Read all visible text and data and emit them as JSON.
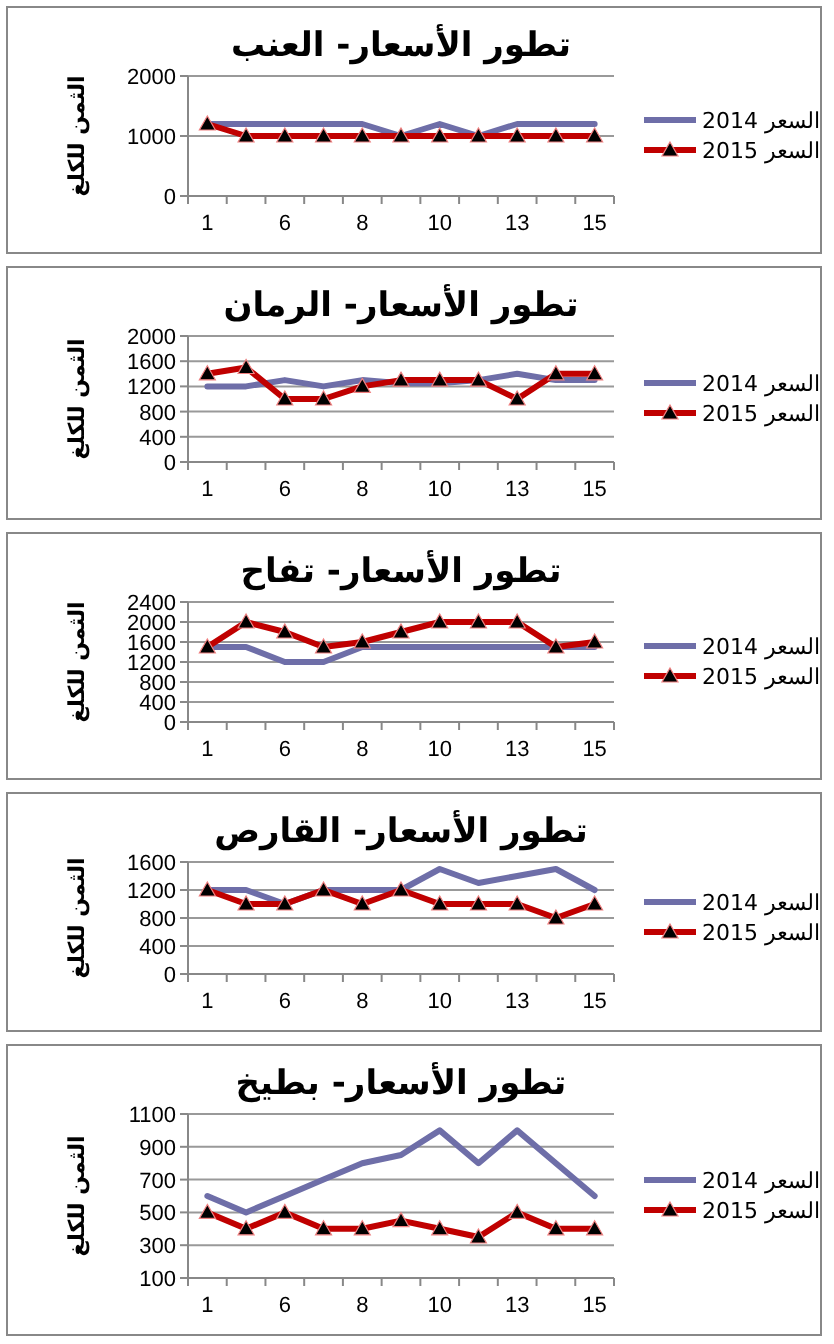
{
  "chart_data": [
    {
      "type": "line",
      "title": "تطور الأسعار- العنب",
      "ylabel": "الثمن للكلغ",
      "categories": [
        "1",
        null,
        "6",
        null,
        "8",
        null,
        "10",
        null,
        "13",
        null,
        "15"
      ],
      "ylim": [
        0,
        2000
      ],
      "yticks": [
        0,
        1000,
        2000
      ],
      "grid": "y",
      "legend": "right",
      "series": [
        {
          "name": "السعر 2014",
          "color": "#6e6ea8",
          "marker": "none",
          "values": [
            1200,
            1200,
            1200,
            1200,
            1200,
            1000,
            1200,
            1000,
            1200,
            1200,
            1200
          ]
        },
        {
          "name": "السعر 2015",
          "color": "#c00000",
          "marker": "triangle",
          "values": [
            1200,
            1000,
            1000,
            1000,
            1000,
            1000,
            1000,
            1000,
            1000,
            1000,
            1000
          ]
        }
      ]
    },
    {
      "type": "line",
      "title": "تطور الأسعار- الرمان",
      "ylabel": "الثمن للكلغ",
      "categories": [
        "1",
        null,
        "6",
        null,
        "8",
        null,
        "10",
        null,
        "13",
        null,
        "15"
      ],
      "ylim": [
        0,
        2000
      ],
      "yticks": [
        0,
        400,
        800,
        1200,
        1600,
        2000
      ],
      "grid": "y",
      "legend": "right",
      "series": [
        {
          "name": "السعر 2014",
          "color": "#6e6ea8",
          "marker": "none",
          "values": [
            1200,
            1200,
            1300,
            1200,
            1300,
            1250,
            1250,
            1300,
            1400,
            1300,
            1300
          ]
        },
        {
          "name": "السعر 2015",
          "color": "#c00000",
          "marker": "triangle",
          "values": [
            1400,
            1500,
            1000,
            1000,
            1200,
            1300,
            1300,
            1300,
            1000,
            1400,
            1400
          ]
        }
      ]
    },
    {
      "type": "line",
      "title": "تطور الأسعار- تفاح",
      "ylabel": "الثمن للكلغ",
      "categories": [
        "1",
        null,
        "6",
        null,
        "8",
        null,
        "10",
        null,
        "13",
        null,
        "15"
      ],
      "ylim": [
        0,
        2400
      ],
      "yticks": [
        0,
        400,
        800,
        1200,
        1600,
        2000,
        2400
      ],
      "grid": "y",
      "legend": "right",
      "series": [
        {
          "name": "السعر 2014",
          "color": "#6e6ea8",
          "marker": "none",
          "values": [
            1500,
            1500,
            1200,
            1200,
            1500,
            1500,
            1500,
            1500,
            1500,
            1500,
            1500
          ]
        },
        {
          "name": "السعر 2015",
          "color": "#c00000",
          "marker": "triangle",
          "values": [
            1500,
            2000,
            1800,
            1500,
            1600,
            1800,
            2000,
            2000,
            2000,
            1500,
            1600
          ]
        }
      ]
    },
    {
      "type": "line",
      "title": "تطور الأسعار- القارص",
      "ylabel": "الثمن للكلغ",
      "categories": [
        "1",
        null,
        "6",
        null,
        "8",
        null,
        "10",
        null,
        "13",
        null,
        "15"
      ],
      "ylim": [
        0,
        1600
      ],
      "yticks": [
        0,
        400,
        800,
        1200,
        1600
      ],
      "grid": "y",
      "legend": "right",
      "series": [
        {
          "name": "السعر 2014",
          "color": "#6e6ea8",
          "marker": "none",
          "values": [
            1200,
            1200,
            1000,
            1200,
            1200,
            1200,
            1500,
            1300,
            1400,
            1500,
            1200
          ]
        },
        {
          "name": "السعر 2015",
          "color": "#c00000",
          "marker": "triangle",
          "values": [
            1200,
            1000,
            1000,
            1200,
            1000,
            1200,
            1000,
            1000,
            1000,
            800,
            1000
          ]
        }
      ]
    },
    {
      "type": "line",
      "title": "تطور الأسعار- بطيخ",
      "ylabel": "الثمن للكلغ",
      "categories": [
        "1",
        null,
        "6",
        null,
        "8",
        null,
        "10",
        null,
        "13",
        null,
        "15"
      ],
      "ylim": [
        100,
        1100
      ],
      "yticks": [
        100,
        300,
        500,
        700,
        900,
        1100
      ],
      "grid": "y",
      "legend": "right",
      "series": [
        {
          "name": "السعر 2014",
          "color": "#6e6ea8",
          "marker": "none",
          "values": [
            600,
            500,
            600,
            700,
            800,
            850,
            1000,
            800,
            1000,
            800,
            600
          ]
        },
        {
          "name": "السعر 2015",
          "color": "#c00000",
          "marker": "triangle",
          "values": [
            500,
            400,
            500,
            400,
            400,
            450,
            400,
            350,
            500,
            400,
            400
          ]
        }
      ]
    }
  ]
}
